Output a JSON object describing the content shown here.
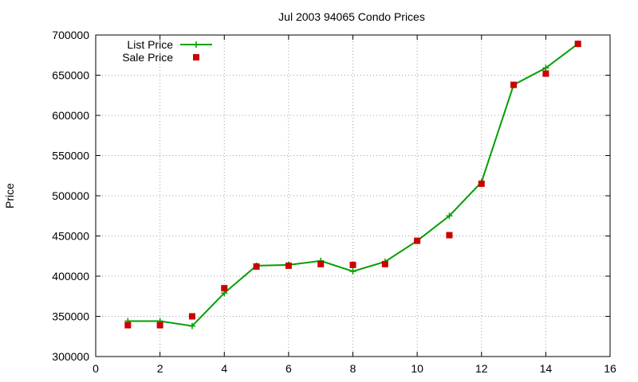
{
  "chart_data": {
    "type": "line",
    "title": "Jul 2003 94065 Condo Prices",
    "ylabel": "Price",
    "xlabel": "",
    "xlim": [
      0,
      16
    ],
    "ylim": [
      300000,
      700000
    ],
    "xticks": [
      0,
      2,
      4,
      6,
      8,
      10,
      12,
      14,
      16
    ],
    "yticks": [
      300000,
      350000,
      400000,
      450000,
      500000,
      550000,
      600000,
      650000,
      700000
    ],
    "grid": true,
    "legend_position": "top-left",
    "series": [
      {
        "name": "List Price",
        "style": "line-plus",
        "color": "#00a000",
        "x": [
          1,
          2,
          3,
          4,
          5,
          6,
          7,
          8,
          9,
          10,
          11,
          12,
          13,
          14,
          15
        ],
        "y": [
          344000,
          344000,
          338000,
          379000,
          413000,
          414000,
          419000,
          406000,
          418000,
          444000,
          475000,
          517000,
          638000,
          659000,
          689000
        ]
      },
      {
        "name": "Sale Price",
        "style": "square-points",
        "color": "#cc0000",
        "x": [
          1,
          2,
          3,
          4,
          5,
          6,
          7,
          8,
          9,
          10,
          11,
          12,
          13,
          14,
          15
        ],
        "y": [
          339000,
          339000,
          350000,
          385000,
          412000,
          413000,
          415000,
          414000,
          415000,
          444000,
          451000,
          515000,
          638000,
          652000,
          689000
        ]
      }
    ]
  }
}
